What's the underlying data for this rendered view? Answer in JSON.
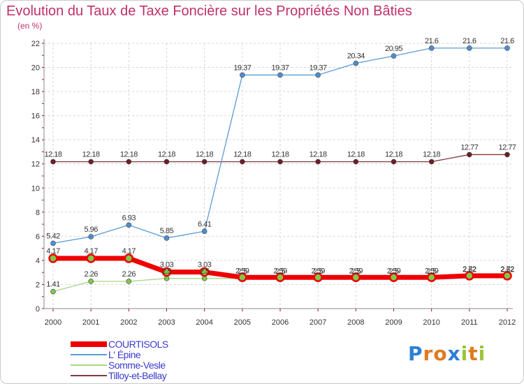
{
  "title": "Evolution du Taux de Taxe Foncière sur les Propriétés Non Bâties",
  "subtitle": "(en %)",
  "brand": {
    "text": "Proxiti",
    "letters": [
      "P",
      "r",
      "o",
      "x",
      "i",
      "t",
      "i"
    ],
    "colors": [
      "#2e7fd4",
      "#e07a1f",
      "#e07a1f",
      "#2e7fd4",
      "#9bc43a",
      "#e07a1f",
      "#9bc43a"
    ]
  },
  "chart_data": {
    "type": "line",
    "title": "Evolution du Taux de Taxe Foncière sur les Propriétés Non Bâties",
    "ylabel": "(en %)",
    "xlabel": "",
    "categories": [
      "2000",
      "2001",
      "2002",
      "2003",
      "2004",
      "2005",
      "2006",
      "2007",
      "2008",
      "2009",
      "2010",
      "2011",
      "2012"
    ],
    "ylim": [
      0,
      22
    ],
    "yticks": [
      0,
      2,
      4,
      6,
      8,
      10,
      12,
      14,
      16,
      18,
      20,
      22
    ],
    "grid": true,
    "series": [
      {
        "name": "COURTISOLS",
        "color": "#ee0000",
        "marker": "#7ec84a",
        "labels": [
          "4.17",
          "4.17",
          "4.17",
          "3.03",
          "3.03",
          "2.59",
          "2.59",
          "2.59",
          "2.59",
          "2.59",
          "2.59",
          "2.72",
          "2.72"
        ],
        "values": [
          4.17,
          4.17,
          4.17,
          3.03,
          3.03,
          2.59,
          2.59,
          2.59,
          2.59,
          2.59,
          2.59,
          2.72,
          2.72
        ]
      },
      {
        "name": "L' Épine",
        "color": "#5b9bd5",
        "marker": "#4d8fcf",
        "labels": [
          "5.42",
          "5.96",
          "6.93",
          "5.85",
          "6.41",
          "19.37",
          "19.37",
          "19.37",
          "20.34",
          "20.95",
          "21.6",
          "21.6",
          "21.6"
        ],
        "values": [
          5.42,
          5.96,
          6.93,
          5.85,
          6.41,
          19.37,
          19.37,
          19.37,
          20.34,
          20.95,
          21.6,
          21.6,
          21.6
        ]
      },
      {
        "name": "Somme-Vesle",
        "color": "#a6d785",
        "marker": "#7ec84a",
        "labels": [
          "1.41",
          "2.26",
          "2.26",
          "2.5",
          "2.5",
          "2.5",
          "2.5",
          "2.5",
          "2.5",
          "2.5",
          "2.5",
          "2.62",
          "2.62"
        ],
        "values": [
          1.41,
          2.26,
          2.26,
          2.5,
          2.5,
          2.5,
          2.5,
          2.5,
          2.5,
          2.5,
          2.5,
          2.62,
          2.62
        ]
      },
      {
        "name": "Tilloy-et-Bellay",
        "color": "#7a3b3b",
        "marker": "#6b1f2a",
        "labels": [
          "12.18",
          "12.18",
          "12.18",
          "12.18",
          "12.18",
          "12.18",
          "12.18",
          "12.18",
          "12.18",
          "12.18",
          "12.18",
          "12.77",
          "12.77"
        ],
        "values": [
          12.18,
          12.18,
          12.18,
          12.18,
          12.18,
          12.18,
          12.18,
          12.18,
          12.18,
          12.18,
          12.18,
          12.77,
          12.77
        ]
      }
    ]
  }
}
